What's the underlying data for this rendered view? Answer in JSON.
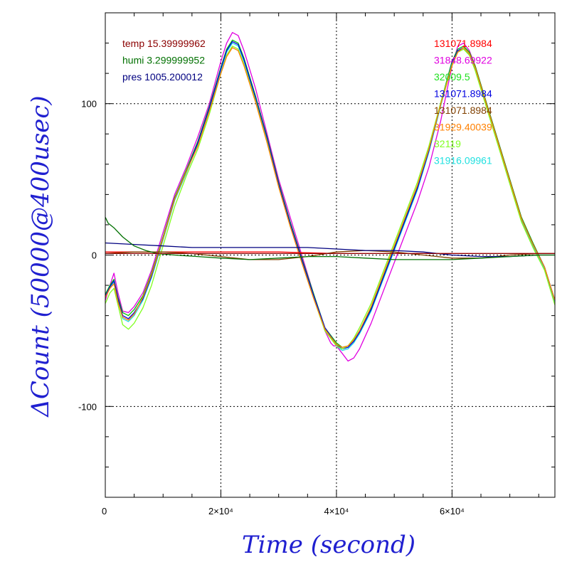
{
  "chart_data": {
    "type": "line",
    "xlabel": "Time (second)",
    "ylabel": "ΔCount (50000@400usec)",
    "xlim": [
      0,
      77800
    ],
    "ylim": [
      -160,
      160
    ],
    "grid": true,
    "x_ticks": [
      {
        "value": 0,
        "label": "0"
      },
      {
        "value": 20000,
        "label": "2×10⁴"
      },
      {
        "value": 40000,
        "label": "4×10⁴"
      },
      {
        "value": 60000,
        "label": "6×10⁴"
      }
    ],
    "y_ticks": [
      {
        "value": 100,
        "label": "100"
      },
      {
        "value": 0,
        "label": "0"
      },
      {
        "value": -100,
        "label": "-100"
      }
    ],
    "legend_left": [
      {
        "text": "temp 15.39999962",
        "color": "#8b0000"
      },
      {
        "text": "humi 3.299999952",
        "color": "#007000"
      },
      {
        "text": "pres 1005.200012",
        "color": "#000080"
      }
    ],
    "legend_right": [
      {
        "text": "131071.8984",
        "color": "#ff0000"
      },
      {
        "text": "31848.69922",
        "color": "#e000e0"
      },
      {
        "text": "32009.5",
        "color": "#20e020"
      },
      {
        "text": "131071.8984",
        "color": "#0000e0"
      },
      {
        "text": "131071.8984",
        "color": "#804000"
      },
      {
        "text": "31929.40039",
        "color": "#ff8000"
      },
      {
        "text": "32119",
        "color": "#80ff20"
      },
      {
        "text": "31916.09961",
        "color": "#20e0e0"
      }
    ],
    "series": [
      {
        "color": "#e000e0",
        "x": [
          0,
          800,
          1500,
          2200,
          3000,
          4000,
          5000,
          6500,
          8000,
          10000,
          12000,
          14000,
          16000,
          18000,
          20000,
          21000,
          22000,
          23000,
          24000,
          26000,
          28000,
          30000,
          32000,
          34000,
          36000,
          37000,
          38000,
          39000,
          39500,
          40000,
          41000,
          42000,
          43000,
          44000,
          46000,
          48000,
          50000,
          52000,
          54000,
          56000,
          58000,
          60000,
          61000,
          62000,
          63000,
          64000,
          66000,
          68000,
          70000,
          72000,
          74000,
          76000,
          77800
        ],
        "y": [
          -30,
          -20,
          -12,
          -25,
          -37,
          -38,
          -34,
          -25,
          -10,
          15,
          40,
          58,
          78,
          100,
          128,
          140,
          147,
          145,
          135,
          110,
          80,
          50,
          25,
          0,
          -25,
          -38,
          -50,
          -58,
          -60,
          -60,
          -65,
          -70,
          -68,
          -62,
          -45,
          -25,
          -5,
          15,
          35,
          58,
          88,
          125,
          138,
          140,
          135,
          125,
          100,
          75,
          50,
          25,
          8,
          -8,
          -32
        ]
      },
      {
        "color": "#00c000",
        "x": [
          0,
          800,
          1500,
          2200,
          3000,
          4000,
          5000,
          6500,
          8000,
          10000,
          12000,
          14000,
          16000,
          18000,
          20000,
          21000,
          22000,
          23000,
          24000,
          26000,
          28000,
          30000,
          32000,
          34000,
          36000,
          38000,
          40000,
          41000,
          42000,
          43000,
          44000,
          46000,
          48000,
          50000,
          52000,
          54000,
          56000,
          58000,
          60000,
          61000,
          62000,
          63000,
          64000,
          66000,
          68000,
          70000,
          72000,
          74000,
          76000,
          77800
        ],
        "y": [
          -26,
          -20,
          -16,
          -28,
          -38,
          -40,
          -36,
          -27,
          -12,
          12,
          38,
          56,
          75,
          98,
          124,
          136,
          142,
          140,
          130,
          105,
          78,
          48,
          22,
          -2,
          -25,
          -48,
          -58,
          -61,
          -60,
          -56,
          -50,
          -35,
          -15,
          5,
          25,
          45,
          70,
          100,
          128,
          136,
          138,
          134,
          125,
          100,
          75,
          50,
          25,
          8,
          -8,
          -30
        ]
      },
      {
        "color": "#20e0e0",
        "x": [
          0,
          800,
          1500,
          2200,
          3000,
          4000,
          5000,
          6500,
          8000,
          10000,
          12000,
          14000,
          16000,
          18000,
          20000,
          21000,
          22000,
          23000,
          24000,
          26000,
          28000,
          30000,
          32000,
          34000,
          36000,
          38000,
          40000,
          41000,
          42000,
          43000,
          44000,
          46000,
          48000,
          50000,
          52000,
          54000,
          56000,
          58000,
          60000,
          61000,
          62000,
          63000,
          64000,
          66000,
          68000,
          70000,
          72000,
          74000,
          76000,
          77800
        ],
        "y": [
          -28,
          -22,
          -18,
          -30,
          -42,
          -44,
          -40,
          -30,
          -15,
          10,
          36,
          54,
          73,
          96,
          122,
          134,
          140,
          138,
          128,
          103,
          76,
          46,
          20,
          -4,
          -27,
          -49,
          -60,
          -63,
          -62,
          -58,
          -52,
          -37,
          -17,
          3,
          23,
          43,
          68,
          98,
          126,
          134,
          136,
          132,
          123,
          98,
          73,
          48,
          23,
          6,
          -9,
          -31
        ]
      },
      {
        "color": "#0000e0",
        "x": [
          0,
          800,
          1500,
          2200,
          3000,
          4000,
          5000,
          6500,
          8000,
          10000,
          12000,
          14000,
          16000,
          18000,
          20000,
          21000,
          22000,
          23000,
          24000,
          26000,
          28000,
          30000,
          32000,
          34000,
          36000,
          38000,
          40000,
          41000,
          42000,
          43000,
          44000,
          46000,
          48000,
          50000,
          52000,
          54000,
          56000,
          58000,
          60000,
          61000,
          62000,
          63000,
          64000,
          66000,
          68000,
          70000,
          72000,
          74000,
          76000,
          77800
        ],
        "y": [
          -27,
          -21,
          -17,
          -29,
          -40,
          -42,
          -38,
          -29,
          -14,
          11,
          37,
          55,
          74,
          97,
          123,
          135,
          141,
          139,
          129,
          104,
          77,
          47,
          21,
          -3,
          -26,
          -48,
          -59,
          -62,
          -61,
          -57,
          -51,
          -36,
          -16,
          4,
          24,
          44,
          69,
          99,
          127,
          135,
          137,
          133,
          124,
          99,
          74,
          49,
          24,
          7,
          -8,
          -30
        ]
      },
      {
        "color": "#80ff20",
        "x": [
          0,
          800,
          1500,
          2200,
          3000,
          4000,
          5000,
          6500,
          8000,
          10000,
          12000,
          14000,
          16000,
          18000,
          20000,
          21000,
          22000,
          23000,
          24000,
          26000,
          28000,
          30000,
          32000,
          34000,
          36000,
          38000,
          40000,
          41000,
          42000,
          43000,
          44000,
          46000,
          48000,
          50000,
          52000,
          54000,
          56000,
          58000,
          60000,
          61000,
          62000,
          63000,
          64000,
          66000,
          68000,
          70000,
          72000,
          74000,
          76000,
          77800
        ],
        "y": [
          -32,
          -25,
          -22,
          -33,
          -46,
          -49,
          -45,
          -35,
          -20,
          6,
          32,
          52,
          70,
          93,
          120,
          132,
          138,
          136,
          126,
          102,
          75,
          45,
          19,
          -5,
          -28,
          -50,
          -60,
          -62,
          -60,
          -55,
          -48,
          -32,
          -12,
          8,
          28,
          48,
          72,
          100,
          126,
          134,
          136,
          132,
          122,
          97,
          72,
          47,
          22,
          5,
          -10,
          -33
        ]
      },
      {
        "color": "#ff8000",
        "x": [
          0,
          800,
          1500,
          2200,
          3000,
          4000,
          5000,
          6500,
          8000,
          10000,
          12000,
          14000,
          16000,
          18000,
          20000,
          21000,
          22000,
          23000,
          24000,
          26000,
          28000,
          30000,
          32000,
          34000,
          36000,
          38000,
          40000,
          41000,
          42000,
          43000,
          44000,
          46000,
          48000,
          50000,
          52000,
          54000,
          56000,
          58000,
          60000,
          61000,
          62000,
          63000,
          64000,
          66000,
          68000,
          70000,
          72000,
          74000,
          76000,
          77800
        ],
        "y": [
          -28,
          -22,
          -19,
          -31,
          -41,
          -43,
          -39,
          -28,
          -13,
          11,
          37,
          55,
          72,
          95,
          120,
          131,
          137,
          135,
          125,
          101,
          74,
          45,
          19,
          -5,
          -28,
          -49,
          -59,
          -61,
          -60,
          -56,
          -50,
          -34,
          -14,
          6,
          26,
          46,
          70,
          99,
          125,
          134,
          137,
          133,
          124,
          99,
          74,
          49,
          24,
          7,
          -8,
          -30
        ]
      },
      {
        "color": "#ff0000",
        "x": [
          0,
          10000,
          20000,
          30000,
          40000,
          50000,
          60000,
          70000,
          77800
        ],
        "y": [
          2,
          2,
          2,
          2,
          1,
          1,
          1,
          1,
          1
        ]
      },
      {
        "color": "#804000",
        "x": [
          0,
          5000,
          10000,
          15000,
          20000,
          25000,
          30000,
          35000,
          40000,
          45000,
          50000,
          55000,
          60000,
          65000,
          70000,
          75000,
          77800
        ],
        "y": [
          1,
          2,
          2,
          1,
          -1,
          -3,
          -3,
          -1,
          2,
          3,
          2,
          0,
          -2,
          -2,
          0,
          1,
          1
        ]
      },
      {
        "color": "#000080",
        "x": [
          0,
          5000,
          10000,
          15000,
          20000,
          25000,
          30000,
          35000,
          40000,
          45000,
          50000,
          55000,
          60000,
          65000,
          70000,
          75000,
          77800
        ],
        "y": [
          8,
          7,
          6,
          5,
          5,
          5,
          5,
          5,
          4,
          3,
          3,
          2,
          0,
          -1,
          -1,
          0,
          0
        ]
      },
      {
        "color": "#007000",
        "x": [
          0,
          500,
          1500,
          3000,
          5000,
          7000,
          9000,
          12000,
          16000,
          20000,
          25000,
          30000,
          35000,
          40000,
          45000,
          50000,
          55000,
          60000,
          65000,
          70000,
          75000,
          77800
        ],
        "y": [
          25,
          21,
          18,
          12,
          6,
          3,
          1,
          0,
          -1,
          -2,
          -3,
          -2,
          -1,
          -1,
          -2,
          -3,
          -3,
          -3,
          -2,
          -1,
          0,
          0
        ]
      },
      {
        "color": "#8b0000",
        "x": [
          0,
          10000,
          20000,
          30000,
          40000,
          50000,
          60000,
          70000,
          77800
        ],
        "y": [
          1,
          1,
          1,
          1,
          1,
          1,
          1,
          1,
          1
        ]
      }
    ]
  }
}
